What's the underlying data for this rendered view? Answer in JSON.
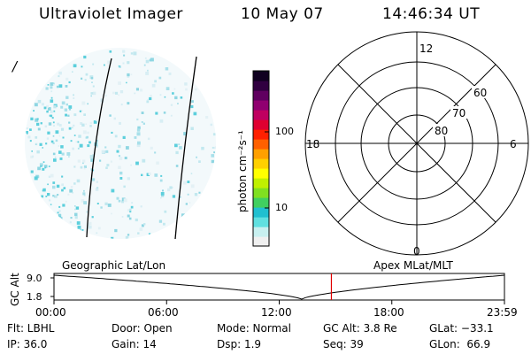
{
  "header": {
    "instrument": "Ultraviolet Imager",
    "date": "10 May 07",
    "time": "14:46:34 UT"
  },
  "image_panel": {
    "corner_mark": "/"
  },
  "colorbar": {
    "unit_label": "photon cm⁻²s⁻¹",
    "ticks": [
      "100",
      "10"
    ],
    "colors": [
      "#f0f0f0",
      "#c8f0f0",
      "#60e0e0",
      "#20c0d0",
      "#40d060",
      "#80e020",
      "#c0f000",
      "#ffff00",
      "#ffd000",
      "#ffa000",
      "#ff6000",
      "#ff2000",
      "#e00030",
      "#c00060",
      "#900070",
      "#600060",
      "#300040",
      "#100020"
    ]
  },
  "polar": {
    "mlt_labels": {
      "top": "12",
      "left": "18",
      "right": "6",
      "bottom": "0"
    },
    "lat_labels": [
      "60",
      "70",
      "80"
    ]
  },
  "timeline": {
    "left_label": "Geographic Lat/Lon",
    "right_label": "Apex MLat/MLT",
    "yaxis_label": "GC Alt",
    "y_ticks": [
      "9.0",
      "1.8"
    ],
    "x_ticks": [
      "00:00",
      "06:00",
      "12:00",
      "18:00",
      "23:59"
    ],
    "current_time_hours": 14.78,
    "marker_color": "#e00000"
  },
  "info": {
    "filter": "Flt: LBHL",
    "ip": "IP: 36.0",
    "door": "Door: Open",
    "gain": "Gain: 14",
    "mode": "Mode: Normal",
    "dsp": "Dsp:    1.9",
    "gc_alt": "GC Alt: 3.8 Re",
    "seq": "Seq: 39",
    "glat": "GLat: −33.1",
    "glon": "GLon:  66.9"
  }
}
